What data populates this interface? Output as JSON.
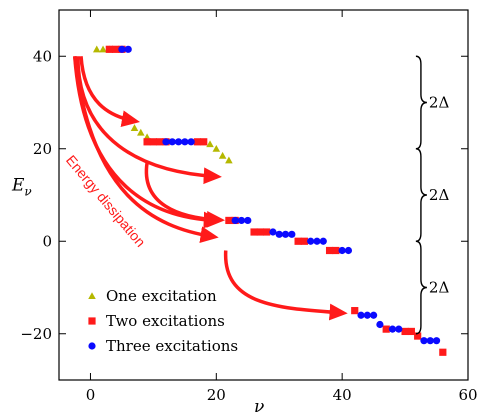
{
  "chart_data": {
    "type": "scatter",
    "xlabel": "ν",
    "ylabel": "E_ν",
    "xlim": [
      -5,
      60
    ],
    "ylim": [
      -30,
      50
    ],
    "x_ticks": [
      0,
      20,
      40,
      60
    ],
    "y_ticks": [
      -20,
      0,
      20,
      40
    ],
    "x_tick_labels": [
      "0",
      "20",
      "40",
      "60"
    ],
    "y_tick_labels": [
      "−20",
      "0",
      "20",
      "40"
    ],
    "legend_position": "bottom-left",
    "series": [
      {
        "name": "One excitation",
        "marker": "triangle",
        "color": "#b5b800",
        "points": [
          [
            1,
            41.5
          ],
          [
            2,
            41.5
          ],
          [
            3,
            41.5
          ],
          [
            7,
            24.5
          ],
          [
            8,
            23.5
          ],
          [
            9,
            22.5
          ],
          [
            19,
            21
          ],
          [
            20,
            20
          ],
          [
            21,
            18.5
          ],
          [
            22,
            17.5
          ]
        ]
      },
      {
        "name": "Two excitations",
        "marker": "square",
        "color": "#ff1a1a",
        "points": [
          [
            3,
            41.5
          ],
          [
            4,
            41.5
          ],
          [
            5,
            41.5
          ],
          [
            9,
            21.5
          ],
          [
            10,
            21.5
          ],
          [
            11,
            21.5
          ],
          [
            12,
            21.5
          ],
          [
            17,
            21.5
          ],
          [
            18,
            21.5
          ],
          [
            22,
            4.5
          ],
          [
            23,
            4.5
          ],
          [
            26,
            2
          ],
          [
            27,
            2
          ],
          [
            28,
            2
          ],
          [
            33,
            0
          ],
          [
            34,
            0
          ],
          [
            38,
            -2
          ],
          [
            39,
            -2
          ],
          [
            42,
            -15
          ],
          [
            47,
            -19
          ],
          [
            50,
            -19.5
          ],
          [
            51,
            -19.5
          ],
          [
            52,
            -20.5
          ],
          [
            56,
            -24
          ]
        ]
      },
      {
        "name": "Three excitations",
        "marker": "circle",
        "color": "#0a0aff",
        "points": [
          [
            5,
            41.5
          ],
          [
            6,
            41.5
          ],
          [
            12,
            21.5
          ],
          [
            13,
            21.5
          ],
          [
            14,
            21.5
          ],
          [
            15,
            21.5
          ],
          [
            16,
            21.5
          ],
          [
            23,
            4.5
          ],
          [
            24,
            4.5
          ],
          [
            25,
            4.5
          ],
          [
            29,
            2
          ],
          [
            30,
            1.5
          ],
          [
            31,
            1.5
          ],
          [
            32,
            1.5
          ],
          [
            35,
            0
          ],
          [
            36,
            0
          ],
          [
            37,
            0
          ],
          [
            40,
            -2
          ],
          [
            41,
            -2
          ],
          [
            43,
            -16
          ],
          [
            44,
            -16
          ],
          [
            45,
            -16
          ],
          [
            46,
            -18
          ],
          [
            48,
            -19
          ],
          [
            49,
            -19
          ],
          [
            53,
            -21.5
          ],
          [
            54,
            -21.5
          ],
          [
            55,
            -21.5
          ]
        ]
      }
    ],
    "annotations": {
      "dissipation_label": "Energy dissipation",
      "gap_label": "2Δ",
      "gap_ranges": [
        [
          40,
          20
        ],
        [
          20,
          0
        ],
        [
          0,
          -20
        ]
      ]
    }
  }
}
